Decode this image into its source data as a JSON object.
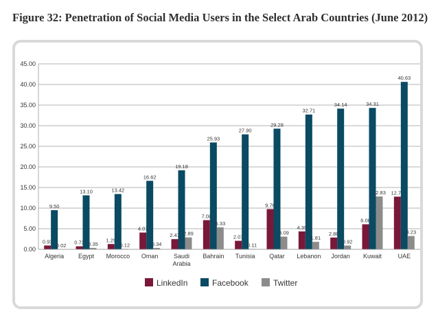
{
  "title": "Figure 32: Penetration of Social Media Users in the Select Arab Countries (June 2012)",
  "colors": {
    "LinkedIn": "#7a1838",
    "Facebook": "#0a4a63",
    "Twitter": "#8c8c8c"
  },
  "chart_data": {
    "type": "bar",
    "categories": [
      "Algeria",
      "Egypt",
      "Morocco",
      "Oman",
      "Saudi Arabia",
      "Bahrain",
      "Tunisia",
      "Qatar",
      "Lebanon",
      "Jordan",
      "Kuwait",
      "UAE"
    ],
    "category_lines": [
      [
        "Algeria"
      ],
      [
        "Egypt"
      ],
      [
        "Morocco"
      ],
      [
        "Oman"
      ],
      [
        "Saudi",
        "Arabia"
      ],
      [
        "Bahrain"
      ],
      [
        "Tunisia"
      ],
      [
        "Qatar"
      ],
      [
        "Lebanon"
      ],
      [
        "Jordan"
      ],
      [
        "Kuwait"
      ],
      [
        "UAE"
      ]
    ],
    "series": [
      {
        "name": "LinkedIn",
        "values": [
          0.93,
          0.73,
          1.29,
          4.07,
          2.47,
          7.08,
          2.07,
          9.76,
          4.35,
          2.86,
          6.08,
          12.78
        ]
      },
      {
        "name": "Facebook",
        "values": [
          9.5,
          13.1,
          13.42,
          16.62,
          19.18,
          25.93,
          27.9,
          29.28,
          32.71,
          34.14,
          34.31,
          40.63
        ]
      },
      {
        "name": "Twitter",
        "values": [
          0.02,
          0.35,
          0.12,
          0.34,
          2.89,
          5.33,
          0.11,
          3.09,
          1.81,
          0.92,
          12.83,
          3.23
        ]
      }
    ],
    "ylim": [
      0,
      45
    ],
    "yticks": [
      "0.00",
      "5.00",
      "10.00",
      "15.00",
      "20.00",
      "25.00",
      "30.00",
      "35.00",
      "40.00",
      "45.00"
    ],
    "grid": true,
    "legend": "bottom"
  }
}
